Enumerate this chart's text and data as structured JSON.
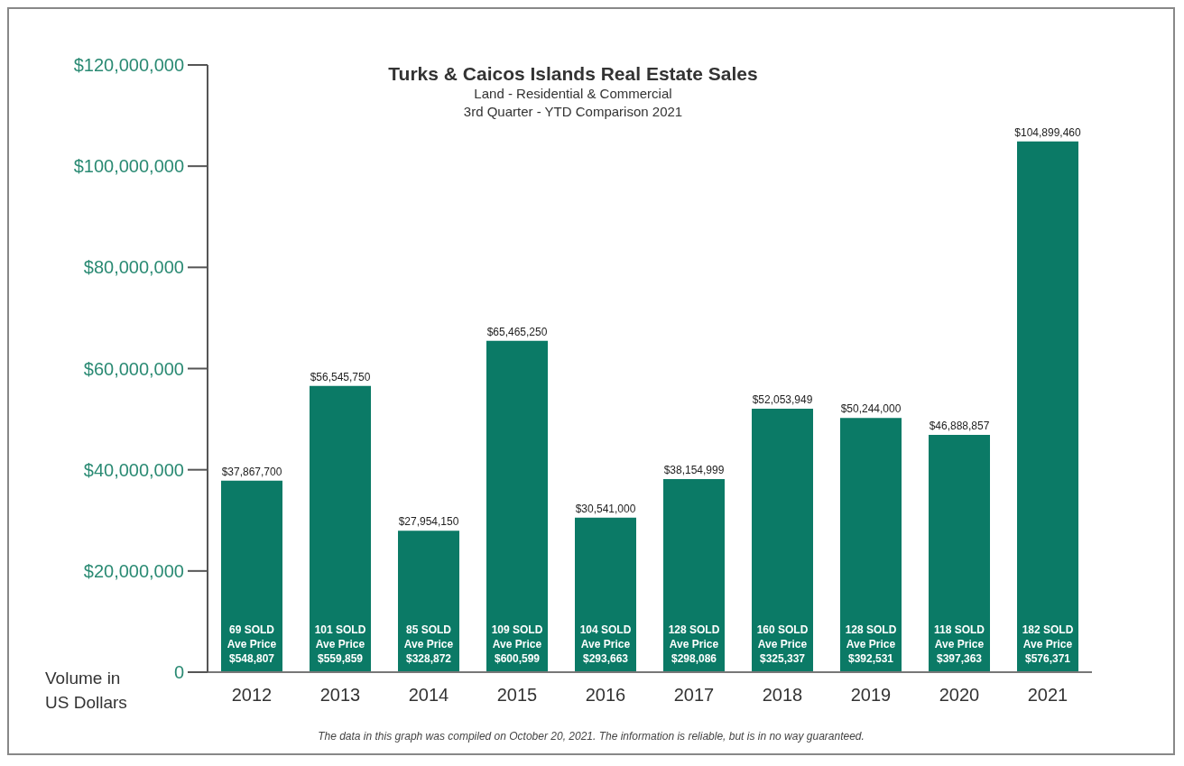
{
  "chart_data": {
    "type": "bar",
    "title": "Turks & Caicos Islands Real Estate Sales",
    "subtitle": "Land - Residential & Commercial\n3rd Quarter - YTD Comparison 2021",
    "ylabel": "Volume in\nUS Dollars",
    "categories": [
      "2012",
      "2013",
      "2014",
      "2015",
      "2016",
      "2017",
      "2018",
      "2019",
      "2020",
      "2021"
    ],
    "values": [
      37867700,
      56545750,
      27954150,
      65465250,
      30541000,
      38154999,
      52053949,
      50244000,
      46888857,
      104899460
    ],
    "value_labels": [
      "$37,867,700",
      "$56,545,750",
      "$27,954,150",
      "$65,465,250",
      "$30,541,000",
      "$38,154,999",
      "$52,053,949",
      "$50,244,000",
      "$46,888,857",
      "$104,899,460"
    ],
    "color": "#0b7a66",
    "ylim": [
      0,
      120000000
    ],
    "yticks": [
      {
        "value": 0,
        "label": "0"
      },
      {
        "value": 20000000,
        "label": "$20,000,000"
      },
      {
        "value": 40000000,
        "label": "$40,000,000"
      },
      {
        "value": 60000000,
        "label": "$60,000,000"
      },
      {
        "value": 80000000,
        "label": "$80,000,000"
      },
      {
        "value": 100000000,
        "label": "$100,000,000"
      },
      {
        "value": 120000000,
        "label": "$120,000,000"
      }
    ],
    "grid": false,
    "legend": false,
    "annotations": [
      "69 SOLD\nAve Price\n$548,807",
      "101 SOLD\nAve Price\n$559,859",
      "85 SOLD\nAve Price\n$328,872",
      "109 SOLD\nAve Price\n$600,599",
      "104 SOLD\nAve Price\n$293,663",
      "128 SOLD\nAve Price\n$298,086",
      "160 SOLD\nAve Price\n$325,337",
      "128 SOLD\nAve Price\n$392,531",
      "118 SOLD\nAve Price\n$397,363",
      "182 SOLD\nAve Price\n$576,371",
      "The data in this graph was compiled on October 20, 2021. The information is reliable, but is in no way guaranteed."
    ]
  }
}
